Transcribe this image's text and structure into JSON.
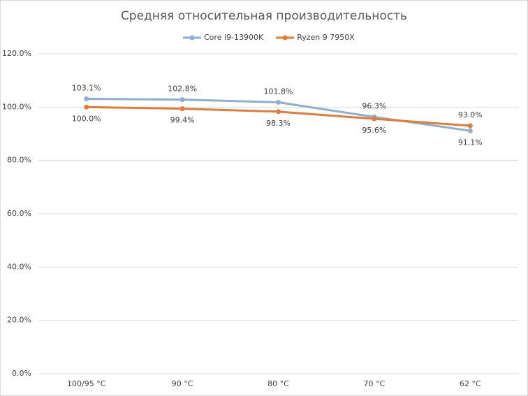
{
  "chart_data": {
    "type": "line",
    "title": "Средняя относительная производительность",
    "categories": [
      "100/95 °C",
      "90 °C",
      "80 °C",
      "70 °C",
      "62 °C"
    ],
    "series": [
      {
        "name": "Core i9-13900K",
        "color": "#8eaed3",
        "values": [
          103.1,
          102.8,
          101.8,
          96.3,
          91.1
        ],
        "value_labels": [
          "103.1%",
          "102.8%",
          "101.8%",
          "96.3%",
          "91.1%"
        ]
      },
      {
        "name": "Ryzen 9 7950X",
        "color": "#e37c3a",
        "values": [
          100.0,
          99.4,
          98.3,
          95.6,
          93.0
        ],
        "value_labels": [
          "100.0%",
          "99.4%",
          "98.3%",
          "95.6%",
          "93.0%"
        ]
      }
    ],
    "ylim": [
      0,
      120
    ],
    "yticks": [
      {
        "value": 0,
        "label": "0.0%"
      },
      {
        "value": 20,
        "label": "20.0%"
      },
      {
        "value": 40,
        "label": "40.0%"
      },
      {
        "value": 60,
        "label": "60.0%"
      },
      {
        "value": 80,
        "label": "80.0%"
      },
      {
        "value": 100,
        "label": "100.0%"
      },
      {
        "value": 120,
        "label": "120.0%"
      }
    ],
    "grid": true,
    "legend": "top"
  }
}
